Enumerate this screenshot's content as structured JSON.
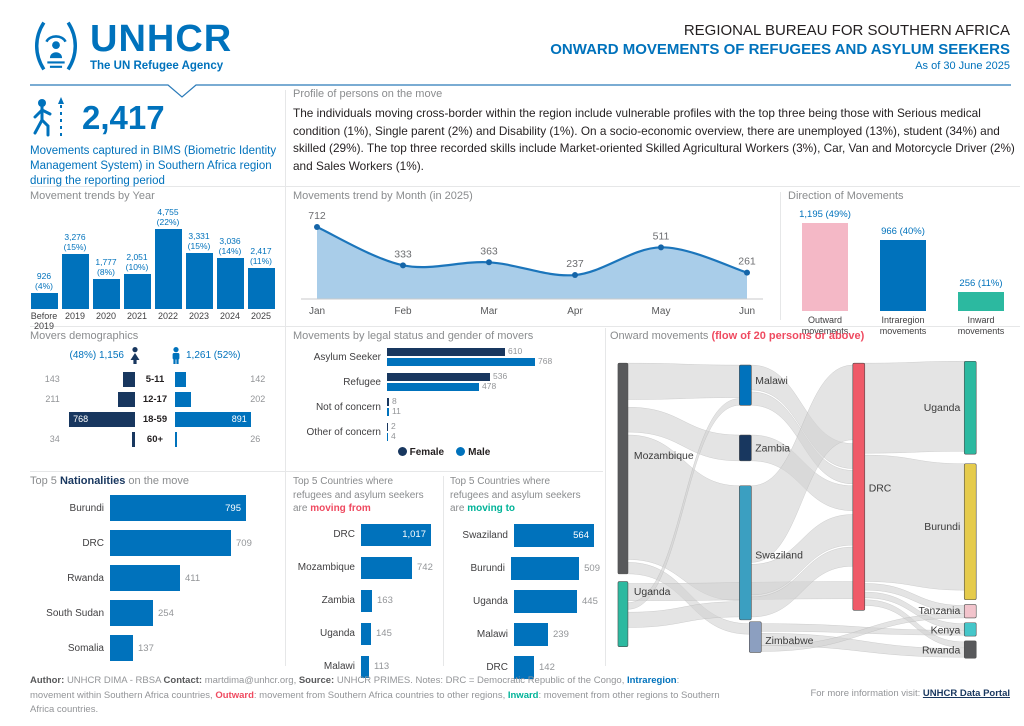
{
  "header": {
    "org": "UNHCR",
    "tagline": "The UN Refugee Agency",
    "title_line1": "REGIONAL BUREAU FOR SOUTHERN AFRICA",
    "title_line2": "ONWARD MOVEMENTS OF REFUGEES AND ASYLUM SEEKERS",
    "as_of": "As of 30 June 2025"
  },
  "key_figure": {
    "value": "2,417",
    "description": "Movements captured in BIMS (Biometric Identity Management System) in Southern Africa region during the reporting period"
  },
  "profile": {
    "heading": "Profile of persons on the move",
    "body": "The individuals moving cross-border within the region include vulnerable profiles with the top three being those with Serious medical condition (1%), Single parent (2%) and Disability (1%). On a socio-economic overview, there are unemployed (13%), student (34%) and skilled (29%). The top three recorded skills include Market-oriented Skilled Agricultural Workers (3%), Car, Van and Motorcycle Driver (2%) and Sales Workers (1%)."
  },
  "colors": {
    "brand_blue": "#0072BC",
    "navy": "#18375F",
    "red": "#EF4A60",
    "teal": "#00B398",
    "pink": "#F4B8C6",
    "yellow": "#E5CB4C",
    "gray_text": "#8a8c8e"
  },
  "chart_data": [
    {
      "id": "movement_trends_by_year",
      "type": "bar",
      "title": "Movement trends by Year",
      "categories": [
        "Before 2019",
        "2019",
        "2020",
        "2021",
        "2022",
        "2023",
        "2024",
        "2025"
      ],
      "values": [
        926,
        3276,
        1777,
        2051,
        4755,
        3331,
        3036,
        2417
      ],
      "value_labels": [
        "926",
        "3,276",
        "1,777",
        "2,051",
        "4,755",
        "3,331",
        "3,036",
        "2,417"
      ],
      "pct_labels": [
        "(4%)",
        "(15%)",
        "(8%)",
        "(10%)",
        "(22%)",
        "(15%)",
        "(14%)",
        "(11%)"
      ],
      "ylim": [
        0,
        4755
      ]
    },
    {
      "id": "movements_trend_by_month",
      "type": "area",
      "title": "Movements trend by Month (in 2025)",
      "x": [
        "Jan",
        "Feb",
        "Mar",
        "Apr",
        "May",
        "Jun"
      ],
      "values": [
        712,
        333,
        363,
        237,
        511,
        261
      ],
      "ylim": [
        0,
        712
      ]
    },
    {
      "id": "direction_of_movements",
      "type": "bar",
      "title": "Direction of Movements",
      "categories": [
        "Outward movements",
        "Intraregion movements",
        "Inward movements"
      ],
      "values": [
        1195,
        966,
        256
      ],
      "value_labels": [
        "1,195 (49%)",
        "966 (40%)",
        "256 (11%)"
      ],
      "colors": [
        "#F4B8C6",
        "#0072BC",
        "#2CB9A0"
      ]
    },
    {
      "id": "movers_demographics",
      "type": "bar",
      "title": "Movers demographics",
      "female_label": "(48%) 1,156",
      "male_label": "1,261 (52%)",
      "age_groups": [
        "5-11",
        "12-17",
        "18-59",
        "60+"
      ],
      "series": [
        {
          "name": "Female",
          "values": [
            143,
            211,
            768,
            34
          ]
        },
        {
          "name": "Male",
          "values": [
            142,
            202,
            891,
            26
          ]
        }
      ]
    },
    {
      "id": "movements_by_legal_status",
      "type": "bar",
      "title": "Movements by legal status and gender of movers",
      "categories": [
        "Asylum Seeker",
        "Refugee",
        "Not of concern",
        "Other of concern"
      ],
      "series": [
        {
          "name": "Female",
          "values": [
            610,
            536,
            8,
            2
          ]
        },
        {
          "name": "Male",
          "values": [
            768,
            478,
            11,
            4
          ]
        }
      ],
      "legend": [
        "Female",
        "Male"
      ]
    },
    {
      "id": "top5_nationalities",
      "type": "bar",
      "title_parts": {
        "prefix": "Top 5 ",
        "bold": "Nationalities",
        "suffix": " on the move"
      },
      "categories": [
        "Burundi",
        "DRC",
        "Rwanda",
        "South Sudan",
        "Somalia"
      ],
      "values": [
        795,
        709,
        411,
        254,
        137
      ],
      "value_labels": [
        "795",
        "709",
        "411",
        "254",
        "137"
      ]
    },
    {
      "id": "top5_moving_from",
      "type": "bar",
      "title_lines": [
        "Top 5 Countries where",
        "refugees and asylum seekers"
      ],
      "title_accent_prefix": "are ",
      "title_accent": "moving from",
      "categories": [
        "DRC",
        "Mozambique",
        "Zambia",
        "Uganda",
        "Malawi"
      ],
      "values": [
        1017,
        742,
        163,
        145,
        113
      ],
      "value_labels": [
        "1,017",
        "742",
        "163",
        "145",
        "113"
      ]
    },
    {
      "id": "top5_moving_to",
      "type": "bar",
      "title_lines": [
        "Top 5 Countries where",
        "refugees and asylum seekers"
      ],
      "title_accent_prefix": "are ",
      "title_accent": "moving to",
      "categories": [
        "Swaziland",
        "Burundi",
        "Uganda",
        "Malawi",
        "DRC"
      ],
      "values": [
        564,
        509,
        445,
        239,
        142
      ],
      "value_labels": [
        "564",
        "509",
        "445",
        "239",
        "142"
      ]
    },
    {
      "id": "onward_movements_sankey",
      "type": "sankey",
      "title": "Onward movements ",
      "title_accent": "(flow of 20 persons or above)",
      "nodes": [
        {
          "label": "Mozambique",
          "color": "#58595B",
          "column": "origin"
        },
        {
          "label": "Uganda",
          "color": "#2CB9A0",
          "column": "origin"
        },
        {
          "label": "Malawi",
          "color": "#0072BC",
          "column": "transit"
        },
        {
          "label": "Zambia",
          "color": "#18375F",
          "column": "transit"
        },
        {
          "label": "Swaziland",
          "color": "#3B9FC1",
          "column": "transit"
        },
        {
          "label": "Zimbabwe",
          "color": "#8C9FC0",
          "column": "transit"
        },
        {
          "label": "DRC",
          "color": "#EF5A68",
          "column": "transit"
        },
        {
          "label": "Uganda",
          "color": "#2CB9A0",
          "column": "destination"
        },
        {
          "label": "Burundi",
          "color": "#E5CB4C",
          "column": "destination"
        },
        {
          "label": "Tanzania",
          "color": "#F2C4CC",
          "column": "destination"
        },
        {
          "label": "Kenya",
          "color": "#45C6C9",
          "column": "destination"
        },
        {
          "label": "Rwanda",
          "color": "#58595B",
          "column": "destination"
        }
      ],
      "links": [
        [
          "Mozambique",
          "Malawi"
        ],
        [
          "Mozambique",
          "Zambia"
        ],
        [
          "Mozambique",
          "Swaziland"
        ],
        [
          "Mozambique",
          "Zimbabwe"
        ],
        [
          "Uganda",
          "DRC"
        ],
        [
          "Uganda",
          "Malawi"
        ],
        [
          "Uganda",
          "Swaziland"
        ],
        [
          "Malawi",
          "DRC"
        ],
        [
          "Zambia",
          "DRC"
        ],
        [
          "Swaziland",
          "DRC"
        ],
        [
          "DRC",
          "Uganda"
        ],
        [
          "DRC",
          "Burundi"
        ],
        [
          "DRC",
          "Tanzania"
        ],
        [
          "DRC",
          "Kenya"
        ],
        [
          "DRC",
          "Rwanda"
        ],
        [
          "Zimbabwe",
          "Tanzania"
        ],
        [
          "Zimbabwe",
          "Kenya"
        ],
        [
          "Zimbabwe",
          "Rwanda"
        ]
      ]
    }
  ],
  "footer": {
    "parts": [
      {
        "t": "Author: ",
        "s": "b"
      },
      {
        "t": "UNHCR DIMA - RBSA  ",
        "s": "g"
      },
      {
        "t": "Contact: ",
        "s": "b"
      },
      {
        "t": "martdima@unhcr.org, ",
        "s": "g"
      },
      {
        "t": "Source: ",
        "s": "b"
      },
      {
        "t": "UNHCR PRIMES. ",
        "s": "g"
      },
      {
        "t": "Notes: DRC = Democratic Republic of the Congo, ",
        "s": "g"
      },
      {
        "t": "Intraregion",
        "s": "blue"
      },
      {
        "t": ": movement within Southern Africa countries, ",
        "s": "g"
      },
      {
        "t": "Outward",
        "s": "red"
      },
      {
        "t": ": movement from Southern Africa countries to other regions, ",
        "s": "g"
      },
      {
        "t": "Inward",
        "s": "teal"
      },
      {
        "t": ": movement from other regions to Southern Africa countries.",
        "s": "g"
      }
    ],
    "more_info": "For more information visit: ",
    "link": "UNHCR Data Portal"
  }
}
